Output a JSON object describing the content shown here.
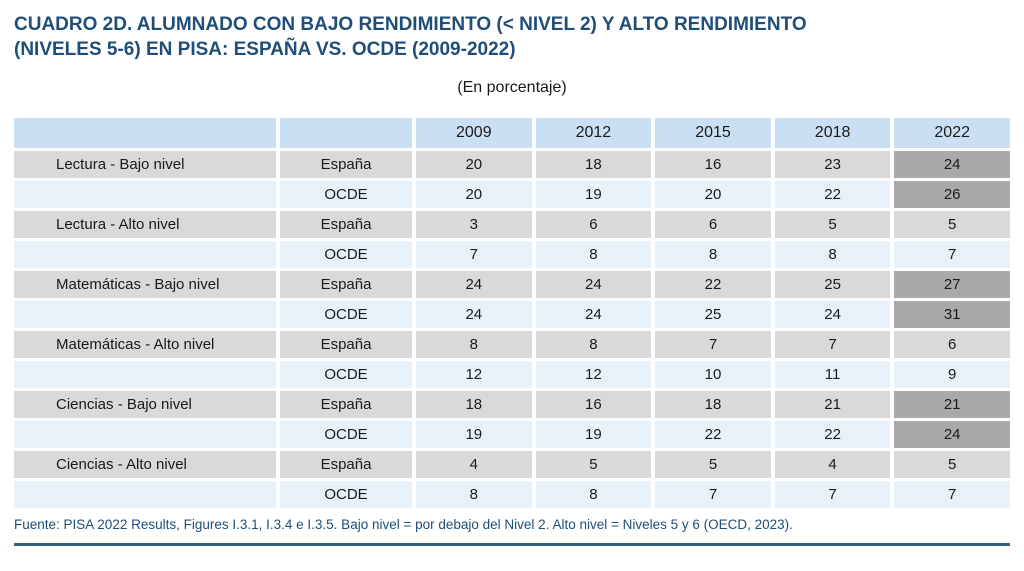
{
  "page": {
    "title_line1": "CUADRO 2D. ALUMNADO CON BAJO RENDIMIENTO (< NIVEL 2) Y ALTO RENDIMIENTO",
    "title_line2": "(NIVELES 5-6) EN PISA: ESPAÑA VS. OCDE (2009-2022)",
    "subtitle": "(En porcentaje)",
    "footer_note": "Fuente: PISA 2022 Results, Figures I.3.1, I.3.4 e I.3.5. Bajo nivel = por debajo del Nivel 2. Alto nivel = Niveles 5 y 6 (OECD, 2023)."
  },
  "chart_data": {
    "type": "table",
    "title": "CUADRO 2D. ALUMNADO CON BAJO RENDIMIENTO (< NIVEL 2) Y ALTO RENDIMIENTO (NIVELES 5-6) EN PISA: ESPAÑA VS. OCDE (2009-2022)",
    "unit": "En porcentaje",
    "year_columns": [
      "2009",
      "2012",
      "2015",
      "2018",
      "2022"
    ],
    "rows": [
      {
        "indicator": "Lectura - Bajo nivel",
        "series": "España",
        "values": [
          20,
          18,
          16,
          23,
          24
        ],
        "highlight_2022": true
      },
      {
        "indicator": "",
        "series": "OCDE",
        "values": [
          20,
          19,
          20,
          22,
          26
        ],
        "highlight_2022": true
      },
      {
        "indicator": "Lectura - Alto nivel",
        "series": "España",
        "values": [
          3,
          6,
          6,
          5,
          5
        ],
        "highlight_2022": false
      },
      {
        "indicator": "",
        "series": "OCDE",
        "values": [
          7,
          8,
          8,
          8,
          7
        ],
        "highlight_2022": false
      },
      {
        "indicator": "Matemáticas - Bajo nivel",
        "series": "España",
        "values": [
          24,
          24,
          22,
          25,
          27
        ],
        "highlight_2022": true
      },
      {
        "indicator": "",
        "series": "OCDE",
        "values": [
          24,
          24,
          25,
          24,
          31
        ],
        "highlight_2022": true
      },
      {
        "indicator": "Matemáticas - Alto nivel",
        "series": "España",
        "values": [
          8,
          8,
          7,
          7,
          6
        ],
        "highlight_2022": false
      },
      {
        "indicator": "",
        "series": "OCDE",
        "values": [
          12,
          12,
          10,
          11,
          9
        ],
        "highlight_2022": false
      },
      {
        "indicator": "Ciencias - Bajo nivel",
        "series": "España",
        "values": [
          18,
          16,
          18,
          21,
          21
        ],
        "highlight_2022": true
      },
      {
        "indicator": "",
        "series": "OCDE",
        "values": [
          19,
          19,
          22,
          22,
          24
        ],
        "highlight_2022": true
      },
      {
        "indicator": "Ciencias - Alto nivel",
        "series": "España",
        "values": [
          4,
          5,
          5,
          4,
          5
        ],
        "highlight_2022": false
      },
      {
        "indicator": "",
        "series": "OCDE",
        "values": [
          8,
          8,
          7,
          7,
          7
        ],
        "highlight_2022": false
      }
    ]
  },
  "colors": {
    "title": "#1F4E79",
    "body_text": "#1A1A1A",
    "header_fill": "#CBDFF2",
    "espana_row_fill": "#D9D9D9",
    "ocde_row_fill": "#E8F1FA",
    "highlight_2022_fill": "#A9A9A9",
    "footer_text": "#1F4E79",
    "bottom_rule": "#2E617F"
  }
}
